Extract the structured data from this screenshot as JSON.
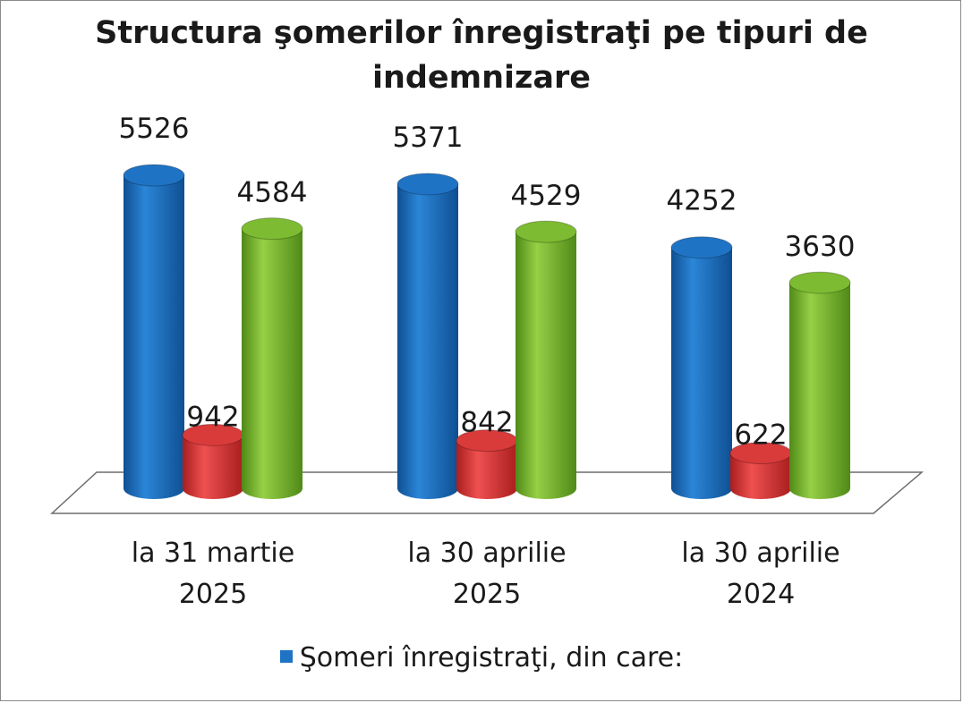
{
  "chart_data": {
    "type": "bar",
    "style": "3d-cylinder",
    "title": "Structura şomerilor înregistraţi pe tipuri de indemnizare",
    "categories": [
      "la 31 martie 2025",
      "la 30 aprilie 2025",
      "la 30 aprilie 2024"
    ],
    "series": [
      {
        "name": "Şomeri înregistraţi, din care:",
        "color": "#1f73c4",
        "values": [
          5526,
          5371,
          4252
        ]
      },
      {
        "color": "#d93a3a",
        "values": [
          942,
          842,
          622
        ]
      },
      {
        "color": "#7dbb32",
        "values": [
          4584,
          4529,
          3630
        ]
      }
    ],
    "ylim": [
      0,
      5526
    ],
    "grid": false,
    "legend_position": "bottom",
    "visible_legend_entries": 1
  }
}
